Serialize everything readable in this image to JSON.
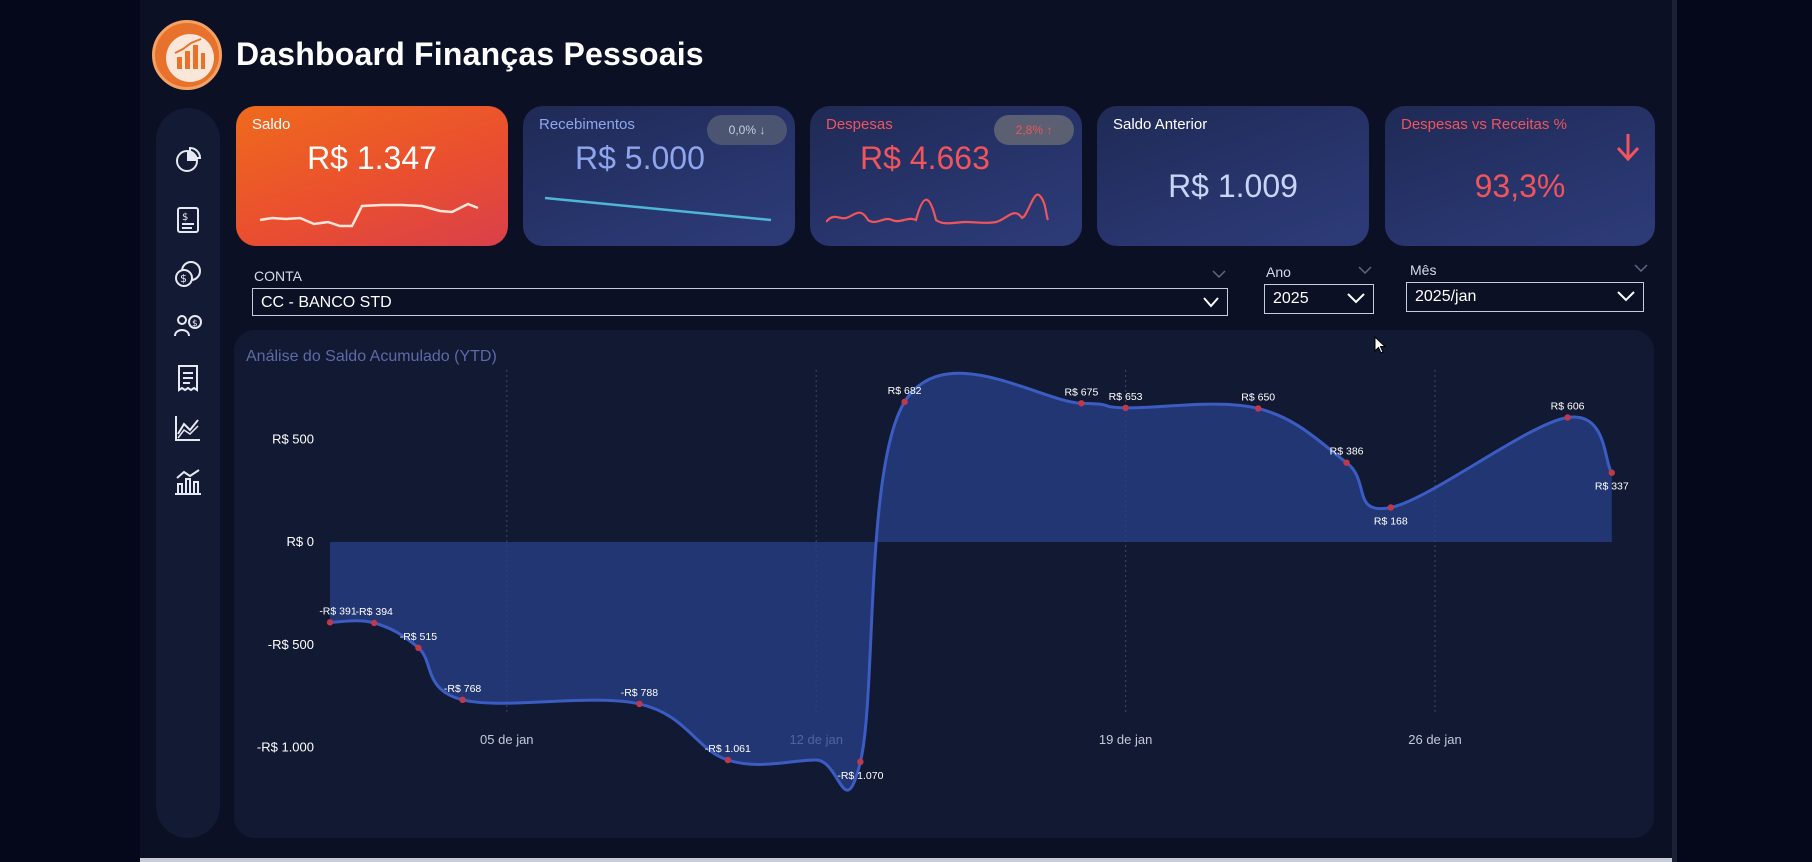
{
  "app": {
    "title": "Dashboard Finanças Pessoais"
  },
  "sidebar": {
    "items": [
      {
        "icon": "pie-chart-icon"
      },
      {
        "icon": "invoice-icon"
      },
      {
        "icon": "coins-icon"
      },
      {
        "icon": "investment-person-icon"
      },
      {
        "icon": "receipt-icon"
      },
      {
        "icon": "area-chart-icon"
      },
      {
        "icon": "bar-line-chart-icon"
      }
    ]
  },
  "cards": {
    "saldo": {
      "label": "Saldo",
      "value": "R$ 1.347"
    },
    "recebimentos": {
      "label": "Recebimentos",
      "value": "R$ 5.000",
      "badge": "0,0%"
    },
    "despesas": {
      "label": "Despesas",
      "value": "R$ 4.663",
      "badge": "2,8%"
    },
    "saldo_anterior": {
      "label": "Saldo Anterior",
      "value": "R$ 1.009"
    },
    "despesas_receitas": {
      "label": "Despesas vs Receitas %",
      "value": "93,3%"
    }
  },
  "filters": {
    "conta": {
      "label": "CONTA",
      "value": "CC - BANCO STD"
    },
    "ano": {
      "label": "Ano",
      "value": "2025"
    },
    "mes": {
      "label": "Mês",
      "value": "2025/jan"
    }
  },
  "colors": {
    "accent_orange": "#ef6a1c",
    "negative_red": "#f0545c",
    "receita_blue": "#8fa6ee",
    "area_fill": "#28408a",
    "line": "#3b5cc2"
  },
  "chart_data": {
    "type": "area",
    "title": "Análise do Saldo Acumulado (YTD)",
    "x_ticks": [
      "05 de jan",
      "12 de jan",
      "19 de jan",
      "26 de jan"
    ],
    "y_ticks": [
      {
        "v": 500,
        "label": "R$ 500"
      },
      {
        "v": 0,
        "label": "R$ 0"
      },
      {
        "v": -500,
        "label": "-R$ 500"
      },
      {
        "v": -1000,
        "label": "-R$ 1.000"
      }
    ],
    "x_range": [
      1,
      30
    ],
    "y_range": [
      -1000,
      500
    ],
    "grid": "vertical dotted at week ticks",
    "points": [
      {
        "day": 1,
        "value": -391,
        "label": "-R$ 391"
      },
      {
        "day": 2,
        "value": -394,
        "label": "-R$ 394"
      },
      {
        "day": 3,
        "value": -515,
        "label": "-R$ 515"
      },
      {
        "day": 4,
        "value": -768,
        "label": "-R$ 768"
      },
      {
        "day": 8,
        "value": -788,
        "label": "-R$ 788"
      },
      {
        "day": 10,
        "value": -1061,
        "label": "-R$ 1.061"
      },
      {
        "day": 12,
        "value": -1061
      },
      {
        "day": 13,
        "value": -1070,
        "label": "-R$ 1.070"
      },
      {
        "day": 14,
        "value": 682,
        "label": "R$ 682"
      },
      {
        "day": 18,
        "value": 675,
        "label": "R$ 675"
      },
      {
        "day": 19,
        "value": 653,
        "label": "R$ 653"
      },
      {
        "day": 22,
        "value": 650,
        "label": "R$ 650"
      },
      {
        "day": 24,
        "value": 386,
        "label": "R$ 386"
      },
      {
        "day": 25,
        "value": 168,
        "label": "R$ 168"
      },
      {
        "day": 29,
        "value": 606,
        "label": "R$ 606"
      },
      {
        "day": 30,
        "value": 337,
        "label": "R$ 337"
      }
    ]
  }
}
